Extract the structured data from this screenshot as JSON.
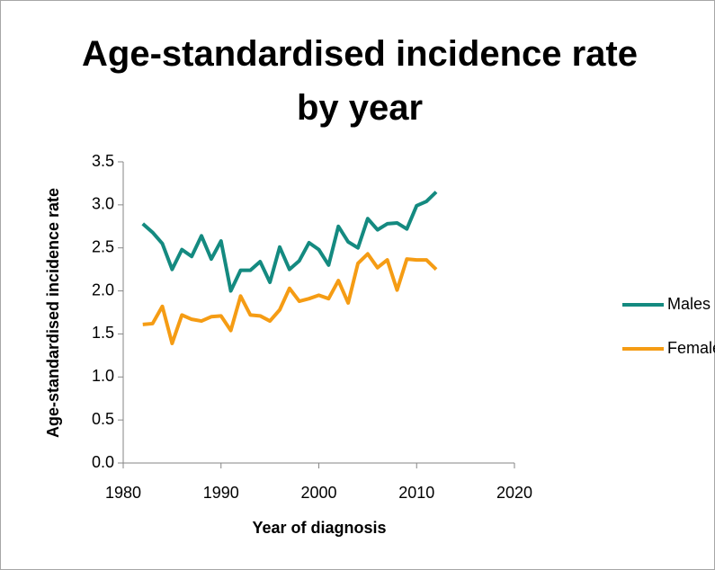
{
  "chart_data": {
    "type": "line",
    "title": "Age-standardised incidence rate by year",
    "x_label": "Year of diagnosis",
    "y_label": "Age-standardised incidence rate",
    "x": [
      1982,
      1983,
      1984,
      1985,
      1986,
      1987,
      1988,
      1989,
      1990,
      1991,
      1992,
      1993,
      1994,
      1995,
      1996,
      1997,
      1998,
      1999,
      2000,
      2001,
      2002,
      2003,
      2004,
      2005,
      2006,
      2007,
      2008,
      2009,
      2010,
      2011,
      2012
    ],
    "series": [
      {
        "name": "Males",
        "color": "#148a80",
        "values": [
          2.78,
          2.68,
          2.55,
          2.25,
          2.48,
          2.4,
          2.64,
          2.37,
          2.58,
          2.0,
          2.24,
          2.24,
          2.34,
          2.1,
          2.51,
          2.25,
          2.35,
          2.56,
          2.48,
          2.3,
          2.75,
          2.57,
          2.5,
          2.84,
          2.71,
          2.78,
          2.79,
          2.72,
          2.99,
          3.04,
          3.15
        ]
      },
      {
        "name": "Females",
        "color": "#f59c14",
        "values": [
          1.61,
          1.62,
          1.82,
          1.39,
          1.72,
          1.67,
          1.65,
          1.7,
          1.71,
          1.54,
          1.94,
          1.72,
          1.71,
          1.65,
          1.78,
          2.03,
          1.88,
          1.91,
          1.95,
          1.91,
          2.12,
          1.86,
          2.32,
          2.43,
          2.27,
          2.36,
          2.01,
          2.37,
          2.36,
          2.36,
          2.25
        ]
      }
    ],
    "xlim": [
      1980,
      2020
    ],
    "xticks": [
      1980,
      1990,
      2000,
      2010,
      2020
    ],
    "ylim": [
      0,
      3.5
    ],
    "yticks": [
      {
        "value": 0,
        "label": "0.0"
      },
      {
        "value": 0.5,
        "label": "0.5"
      },
      {
        "value": 1,
        "label": "1.0"
      },
      {
        "value": 1.5,
        "label": "1.5"
      },
      {
        "value": 2,
        "label": "2.0"
      },
      {
        "value": 2.5,
        "label": "2.5"
      },
      {
        "value": 3,
        "label": "3.0"
      },
      {
        "value": 3.5,
        "label": "3.5"
      }
    ],
    "grid": false,
    "legend": "right"
  }
}
